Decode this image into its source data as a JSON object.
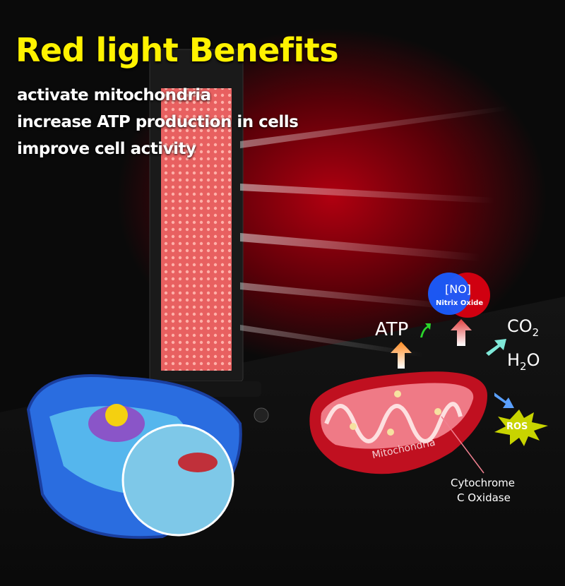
{
  "headline": "Red light Benefits",
  "benefits": [
    "activate mitochondria",
    "increase ATP production in cells",
    "improve cell activity"
  ],
  "diagram": {
    "no_label": "[NO]",
    "no_name": "Nitrix Oxide",
    "atp": "ATP",
    "co2": "CO",
    "co2_sub": "2",
    "h2o_h": "H",
    "h2o_sub": "2",
    "h2o_o": "O",
    "ros": "ROS",
    "mitochondria": "Mitochondria",
    "cytochrome_1": "Cytochrome",
    "cytochrome_2": "C Oxidase"
  },
  "colors": {
    "headline": "#fff200",
    "red_light": "#d0001a",
    "no_blue": "#1a5cff",
    "no_red": "#d00010",
    "ros": "#c8d400",
    "atp_arrow": "#2bd62b"
  }
}
